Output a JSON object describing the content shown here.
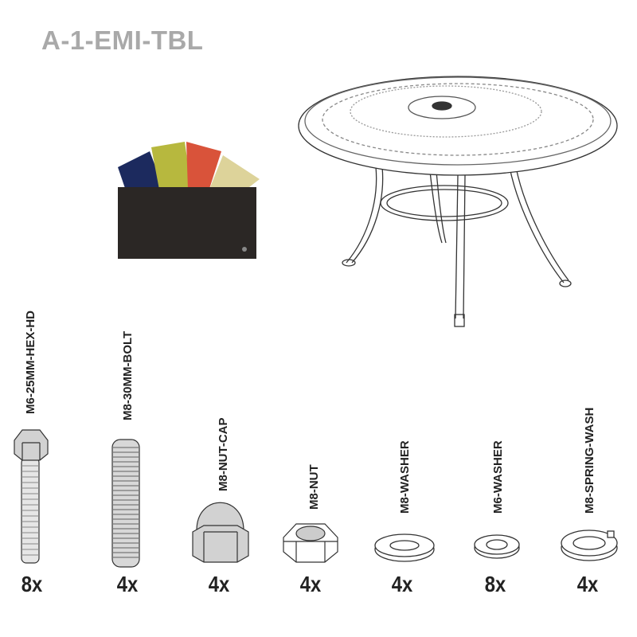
{
  "title": "A-1-EMI-TBL",
  "images": {
    "table": "oval-cast-table-drawing",
    "swatches": "fabric-color-swatches"
  },
  "swatch_colors": [
    "#1c2a5e",
    "#b7b83e",
    "#d9533a",
    "#ddd39a",
    "#2b2725"
  ],
  "parts": [
    {
      "label": "M6-25MM-HEX-HD",
      "quantity": "8x",
      "icon": "hex-bolt"
    },
    {
      "label": "M8-30MM-BOLT",
      "quantity": "4x",
      "icon": "threaded-rod"
    },
    {
      "label": "M8-NUT-CAP",
      "quantity": "4x",
      "icon": "cap-nut"
    },
    {
      "label": "M8-NUT",
      "quantity": "4x",
      "icon": "hex-nut"
    },
    {
      "label": "M8-WASHER",
      "quantity": "4x",
      "icon": "flat-washer"
    },
    {
      "label": "M6-WASHER",
      "quantity": "8x",
      "icon": "flat-washer"
    },
    {
      "label": "M8-SPRING-WASH",
      "quantity": "4x",
      "icon": "spring-washer"
    }
  ]
}
